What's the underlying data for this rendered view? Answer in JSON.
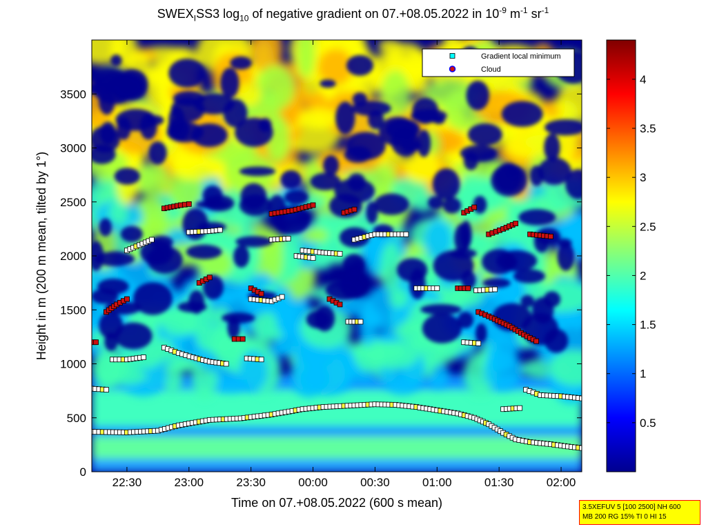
{
  "title": {
    "prefix": "SWEX",
    "sub1": "I",
    "mid": "SS3 log",
    "sub2": "10",
    "rest": " of negative gradient on 07.+08.05.2022 in 10",
    "sup1": "-9",
    "unit1": " m",
    "sup2": "-1",
    "unit2": " sr",
    "sup3": "-1"
  },
  "stamp": {
    "line1": "3.5XEFUV 5 [100 2500] NH 600",
    "line2": "MB 200 RG 15% TI 0 HI 15"
  },
  "colors": {
    "background_low": "#00008f",
    "cloud": "#cc1010",
    "minimum": "#ffffff"
  },
  "chart_data": {
    "type": "heatmap",
    "xlabel": "Time on 07.+08.05.2022 (600 s mean)",
    "ylabel": "Height in m (200 m mean, tilted by 1°)",
    "x_ticks": [
      "22:30",
      "23:00",
      "23:30",
      "00:00",
      "00:30",
      "01:00",
      "01:30",
      "02:00"
    ],
    "y_ticks": [
      0,
      500,
      1000,
      1500,
      2000,
      2500,
      3000,
      3500
    ],
    "xlim_minutes_after_2200": [
      13,
      250
    ],
    "ylim": [
      0,
      4000
    ],
    "colorbar": {
      "ticks": [
        0.5,
        1,
        1.5,
        2,
        2.5,
        3,
        3.5,
        4
      ],
      "range": [
        0,
        4.4
      ],
      "colormap": "jet"
    },
    "legend": {
      "placement": "top-right",
      "entries": [
        "Gradient local minimum",
        "Cloud"
      ]
    },
    "layers": [
      {
        "name": "surface",
        "points": [
          [
            13,
            420
          ],
          [
            60,
            420
          ],
          [
            120,
            420
          ],
          [
            200,
            400
          ],
          [
            250,
            400
          ]
        ]
      },
      {
        "name": "boundary-lower",
        "points": [
          [
            13,
            380
          ],
          [
            40,
            380
          ],
          [
            55,
            440
          ],
          [
            75,
            490
          ],
          [
            100,
            540
          ],
          [
            120,
            580
          ],
          [
            150,
            620
          ],
          [
            170,
            610
          ],
          [
            195,
            540
          ],
          [
            208,
            470
          ],
          [
            220,
            350
          ],
          [
            240,
            310
          ],
          [
            250,
            300
          ]
        ]
      },
      {
        "name": "boundary-upper",
        "points": [
          [
            13,
            500
          ],
          [
            60,
            500
          ],
          [
            100,
            540
          ],
          [
            130,
            610
          ],
          [
            165,
            630
          ],
          [
            188,
            620
          ],
          [
            210,
            590
          ],
          [
            223,
            600
          ],
          [
            235,
            680
          ],
          [
            250,
            690
          ]
        ]
      },
      {
        "name": "layer-mid",
        "points": [
          [
            13,
            760
          ],
          [
            40,
            760
          ],
          [
            80,
            1000
          ],
          [
            130,
            1000
          ],
          [
            180,
            900
          ],
          [
            215,
            880
          ],
          [
            240,
            700
          ],
          [
            250,
            700
          ]
        ]
      }
    ],
    "series": [
      {
        "name": "Gradient local minimum",
        "segments": [
          [
            [
              13,
              370
            ],
            [
              20,
              368
            ],
            [
              30,
              365
            ],
            [
              45,
              380
            ],
            [
              55,
              430
            ],
            [
              70,
              480
            ],
            [
              85,
              495
            ],
            [
              100,
              530
            ],
            [
              115,
              580
            ],
            [
              125,
              600
            ],
            [
              140,
              615
            ],
            [
              150,
              625
            ],
            [
              160,
              620
            ],
            [
              170,
              600
            ],
            [
              180,
              570
            ],
            [
              190,
              540
            ],
            [
              198,
              500
            ],
            [
              205,
              440
            ],
            [
              212,
              360
            ],
            [
              218,
              300
            ],
            [
              225,
              275
            ],
            [
              235,
              255
            ],
            [
              245,
              230
            ],
            [
              250,
              220
            ]
          ],
          [
            [
              212,
              580
            ],
            [
              220,
              590
            ]
          ],
          [
            [
              223,
              760
            ],
            [
              230,
              710
            ],
            [
              240,
              700
            ],
            [
              250,
              680
            ]
          ],
          [
            [
              13,
              770
            ],
            [
              20,
              760
            ]
          ],
          [
            [
              23,
              1040
            ],
            [
              30,
              1040
            ],
            [
              38,
              1060
            ]
          ],
          [
            [
              48,
              1150
            ],
            [
              55,
              1100
            ],
            [
              62,
              1060
            ],
            [
              70,
              1020
            ],
            [
              78,
              1000
            ]
          ],
          [
            [
              88,
              1050
            ],
            [
              95,
              1040
            ]
          ],
          [
            [
              193,
              1200
            ],
            [
              200,
              1190
            ]
          ],
          [
            [
              90,
              1600
            ],
            [
              100,
              1580
            ],
            [
              105,
              1620
            ]
          ],
          [
            [
              137,
              1390
            ],
            [
              143,
              1390
            ]
          ],
          [
            [
              112,
              2000
            ],
            [
              120,
              1980
            ]
          ],
          [
            [
              115,
              2050
            ],
            [
              125,
              2030
            ],
            [
              133,
              2020
            ]
          ],
          [
            [
              60,
              2220
            ],
            [
              70,
              2230
            ],
            [
              75,
              2240
            ]
          ],
          [
            [
              30,
              2050
            ],
            [
              36,
              2100
            ],
            [
              42,
              2150
            ]
          ],
          [
            [
              140,
              2150
            ],
            [
              150,
              2200
            ],
            [
              160,
              2200
            ],
            [
              165,
              2200
            ]
          ],
          [
            [
              100,
              2150
            ],
            [
              108,
              2160
            ]
          ],
          [
            [
              170,
              1700
            ],
            [
              180,
              1700
            ]
          ],
          [
            [
              199,
              1680
            ],
            [
              208,
              1690
            ]
          ]
        ]
      },
      {
        "name": "Cloud",
        "segments": [
          [
            [
              14,
              1200
            ],
            [
              15,
              1200
            ]
          ],
          [
            [
              20,
              1480
            ],
            [
              25,
              1550
            ],
            [
              30,
              1600
            ]
          ],
          [
            [
              65,
              1750
            ],
            [
              70,
              1800
            ]
          ],
          [
            [
              82,
              1230
            ],
            [
              86,
              1230
            ]
          ],
          [
            [
              90,
              1700
            ],
            [
              95,
              1650
            ]
          ],
          [
            [
              128,
              1600
            ],
            [
              133,
              1550
            ]
          ],
          [
            [
              200,
              1480
            ],
            [
              205,
              1440
            ],
            [
              215,
              1350
            ],
            [
              222,
              1270
            ],
            [
              228,
              1210
            ]
          ],
          [
            [
              190,
              1700
            ],
            [
              195,
              1700
            ]
          ],
          [
            [
              205,
              2200
            ],
            [
              212,
              2250
            ],
            [
              218,
              2300
            ]
          ],
          [
            [
              135,
              2400
            ],
            [
              140,
              2430
            ]
          ],
          [
            [
              100,
              2390
            ],
            [
              110,
              2420
            ],
            [
              120,
              2470
            ]
          ],
          [
            [
              193,
              2400
            ],
            [
              198,
              2450
            ]
          ],
          [
            [
              48,
              2440
            ],
            [
              56,
              2470
            ],
            [
              60,
              2480
            ]
          ],
          [
            [
              225,
              2200
            ],
            [
              235,
              2180
            ]
          ]
        ]
      }
    ]
  }
}
